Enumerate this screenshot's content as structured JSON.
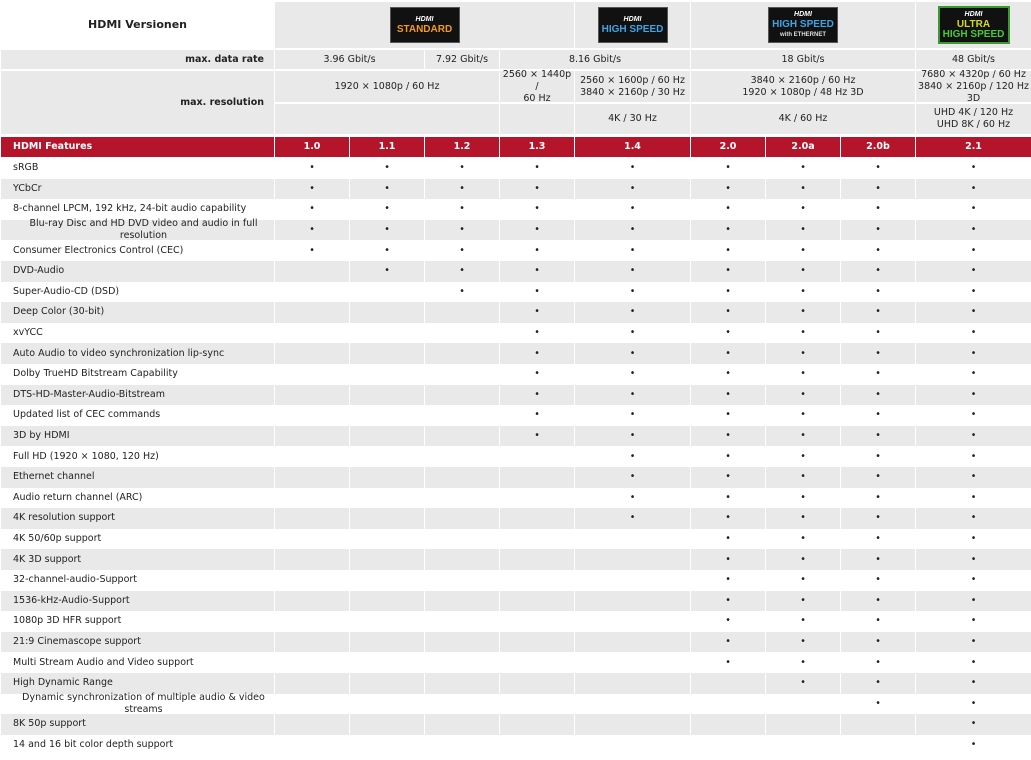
{
  "header": {
    "title": "HDMI Versionen",
    "logos": [
      {
        "brand": "HDMI",
        "lines": [
          "STANDARD"
        ]
      },
      {
        "brand": "HDMI",
        "lines": [
          "HIGH SPEED"
        ]
      },
      {
        "brand": "HDMI",
        "lines": [
          "HIGH SPEED",
          "with ETHERNET"
        ]
      },
      {
        "brand": "HDMI",
        "lines": [
          "ULTRA",
          "HIGH SPEED"
        ]
      }
    ]
  },
  "data_rate": {
    "label": "max. data rate",
    "values": [
      "3.96 Gbit/s",
      "7.92 Gbit/s",
      "8.16 Gbit/s",
      "18 Gbit/s",
      "48 Gbit/s"
    ]
  },
  "resolution": {
    "label": "max. resolution",
    "values": [
      [
        "1920 × 1080p / 60 Hz"
      ],
      [
        "2560 × 1440p /",
        "60 Hz"
      ],
      [
        "2560 × 1600p / 60 Hz",
        "3840 × 2160p / 30 Hz"
      ],
      [
        "3840 × 2160p / 60 Hz",
        "1920 × 1080p / 48 Hz 3D"
      ],
      [
        "7680 × 4320p / 60 Hz",
        "3840 × 2160p / 120 Hz 3D"
      ]
    ],
    "extra": [
      [
        "4K / 30 Hz"
      ],
      [
        "4K / 60 Hz"
      ],
      [
        "UHD 4K / 120 Hz",
        "UHD 8K / 60 Hz"
      ]
    ]
  },
  "table": {
    "header": [
      "HDMI Features",
      "1.0",
      "1.1",
      "1.2",
      "1.3",
      "1.4",
      "2.0",
      "2.0a",
      "2.0b",
      "2.1"
    ],
    "rows": [
      {
        "feature": "sRGB",
        "cells": [
          "•",
          "•",
          "•",
          "•",
          "•",
          "•",
          "•",
          "•",
          "•"
        ]
      },
      {
        "feature": "YCbCr",
        "cells": [
          "•",
          "•",
          "•",
          "•",
          "•",
          "•",
          "•",
          "•",
          "•"
        ]
      },
      {
        "feature": "8-channel LPCM, 192 kHz, 24-bit audio capability",
        "cells": [
          "•",
          "•",
          "•",
          "•",
          "•",
          "•",
          "•",
          "•",
          "•"
        ]
      },
      {
        "feature": "Blu-ray Disc and HD DVD video and audio in full resolution",
        "cells": [
          "•",
          "•",
          "•",
          "•",
          "•",
          "•",
          "•",
          "•",
          "•"
        ]
      },
      {
        "feature": "Consumer Electronics Control (CEC)",
        "cells": [
          "•",
          "•",
          "•",
          "•",
          "•",
          "•",
          "•",
          "•",
          "•"
        ]
      },
      {
        "feature": "DVD-Audio",
        "cells": [
          null,
          "•",
          "•",
          "•",
          "•",
          "•",
          "•",
          "•",
          "•"
        ]
      },
      {
        "feature": "Super-Audio-CD (DSD)",
        "cells": [
          null,
          null,
          "•",
          "•",
          "•",
          "•",
          "•",
          "•",
          "•"
        ]
      },
      {
        "feature": "Deep Color (30-bit)",
        "cells": [
          null,
          null,
          null,
          "•",
          "•",
          "•",
          "•",
          "•",
          "•"
        ]
      },
      {
        "feature": "xvYCC",
        "cells": [
          null,
          null,
          null,
          "•",
          "•",
          "•",
          "•",
          "•",
          "•"
        ]
      },
      {
        "feature": "Auto Audio to video synchronization lip-sync",
        "cells": [
          null,
          null,
          null,
          "•",
          "•",
          "•",
          "•",
          "•",
          "•"
        ]
      },
      {
        "feature": "Dolby TrueHD Bitstream Capability",
        "cells": [
          null,
          null,
          null,
          "•",
          "•",
          "•",
          "•",
          "•",
          "•"
        ]
      },
      {
        "feature": "DTS-HD-Master-Audio-Bitstream",
        "cells": [
          null,
          null,
          null,
          "•",
          "•",
          "•",
          "•",
          "•",
          "•"
        ]
      },
      {
        "feature": "Updated list of CEC commands",
        "cells": [
          null,
          null,
          null,
          "•",
          "•",
          "•",
          "•",
          "•",
          "•"
        ]
      },
      {
        "feature": "3D by HDMI",
        "cells": [
          null,
          null,
          null,
          "•",
          "•",
          "•",
          "•",
          "•",
          "•"
        ]
      },
      {
        "feature": "Full HD (1920 × 1080, 120 Hz)",
        "cells": [
          null,
          null,
          null,
          null,
          "•",
          "•",
          "•",
          "•",
          "•"
        ]
      },
      {
        "feature": "Ethernet channel",
        "cells": [
          null,
          null,
          null,
          null,
          "•",
          "•",
          "•",
          "•",
          "•"
        ]
      },
      {
        "feature": "Audio return channel (ARC)",
        "cells": [
          null,
          null,
          null,
          null,
          "•",
          "•",
          "•",
          "•",
          "•"
        ]
      },
      {
        "feature": "4K resolution support",
        "cells": [
          null,
          null,
          null,
          null,
          "•",
          "•",
          "•",
          "•",
          "•"
        ]
      },
      {
        "feature": "4K 50/60p support",
        "cells": [
          null,
          null,
          null,
          null,
          null,
          "•",
          "•",
          "•",
          "•"
        ]
      },
      {
        "feature": "4K 3D support",
        "cells": [
          null,
          null,
          null,
          null,
          null,
          "•",
          "•",
          "•",
          "•"
        ]
      },
      {
        "feature": "32-channel-audio-Support",
        "cells": [
          null,
          null,
          null,
          null,
          null,
          "•",
          "•",
          "•",
          "•"
        ]
      },
      {
        "feature": "1536-kHz-Audio-Support",
        "cells": [
          null,
          null,
          null,
          null,
          null,
          "•",
          "•",
          "•",
          "•"
        ]
      },
      {
        "feature": "1080p 3D HFR support",
        "cells": [
          null,
          null,
          null,
          null,
          null,
          "•",
          "•",
          "•",
          "•"
        ]
      },
      {
        "feature": "21:9 Cinemascope support",
        "cells": [
          null,
          null,
          null,
          null,
          null,
          "•",
          "•",
          "•",
          "•"
        ]
      },
      {
        "feature": "Multi Stream Audio and Video support",
        "cells": [
          null,
          null,
          null,
          null,
          null,
          "•",
          "•",
          "•",
          "•"
        ]
      },
      {
        "feature": "High Dynamic Range",
        "cells": [
          null,
          null,
          null,
          null,
          null,
          null,
          "•",
          "•",
          "•"
        ]
      },
      {
        "feature": "Dynamic synchronization of multiple audio & video streams",
        "cells": [
          null,
          null,
          null,
          null,
          null,
          null,
          null,
          "•",
          "•"
        ]
      },
      {
        "feature": "8K 50p support",
        "cells": [
          null,
          null,
          null,
          null,
          null,
          null,
          null,
          null,
          "•"
        ]
      },
      {
        "feature": "14 and 16 bit color depth support",
        "cells": [
          null,
          null,
          null,
          null,
          null,
          null,
          null,
          null,
          "•"
        ]
      }
    ]
  }
}
